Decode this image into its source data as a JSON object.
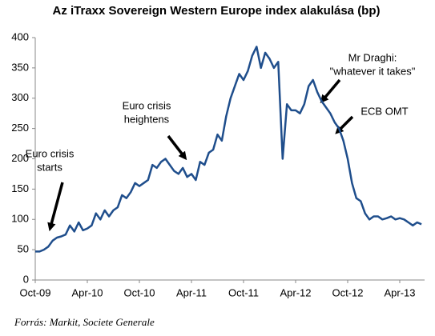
{
  "chart_data": {
    "type": "line",
    "title": "Az iTraxx Sovereign Western Europe index alakulása (bp)",
    "source": "Forrás: Markit, Societe Generale",
    "categories": [
      "Oct-09",
      null,
      null,
      null,
      null,
      null,
      null,
      null,
      null,
      null,
      null,
      null,
      "Apr-10",
      null,
      null,
      null,
      null,
      null,
      null,
      null,
      null,
      null,
      null,
      null,
      "Oct-10",
      null,
      null,
      null,
      null,
      null,
      null,
      null,
      null,
      null,
      null,
      null,
      "Apr-11",
      null,
      null,
      null,
      null,
      null,
      null,
      null,
      null,
      null,
      null,
      null,
      "Oct-11",
      null,
      null,
      null,
      null,
      null,
      null,
      null,
      null,
      null,
      null,
      null,
      "Apr-12",
      null,
      null,
      null,
      null,
      null,
      null,
      null,
      null,
      null,
      null,
      null,
      "Oct-12",
      null,
      null,
      null,
      null,
      null,
      null,
      null,
      null,
      null,
      null,
      null,
      "Apr-13",
      null,
      null,
      null,
      null,
      null
    ],
    "series": [
      {
        "color": "#1f4e8c",
        "values": [
          47,
          47,
          50,
          55,
          65,
          70,
          72,
          75,
          90,
          80,
          95,
          82,
          85,
          90,
          110,
          100,
          115,
          105,
          115,
          120,
          140,
          135,
          145,
          160,
          155,
          160,
          165,
          190,
          185,
          195,
          200,
          190,
          180,
          175,
          185,
          170,
          175,
          165,
          195,
          190,
          210,
          215,
          240,
          230,
          270,
          300,
          320,
          340,
          330,
          345,
          370,
          385,
          350,
          375,
          365,
          350,
          360,
          200,
          290,
          280,
          280,
          275,
          290,
          320,
          330,
          310,
          295,
          285,
          275,
          260,
          250,
          230,
          200,
          160,
          135,
          130,
          110,
          100,
          105,
          105,
          100,
          102,
          105,
          100,
          102,
          100,
          95,
          90,
          95,
          92
        ]
      }
    ],
    "ylim": [
      0,
      400
    ],
    "yticks": [
      0,
      50,
      100,
      150,
      200,
      250,
      300,
      350,
      400
    ],
    "annotations": [
      {
        "lines": [
          "Euro crisis",
          "starts"
        ]
      },
      {
        "lines": [
          "Euro crisis",
          "heightens"
        ]
      },
      {
        "lines": [
          "Mr Draghi:",
          "\"whatever it takes\""
        ]
      },
      {
        "lines": [
          "ECB OMT"
        ]
      }
    ]
  }
}
